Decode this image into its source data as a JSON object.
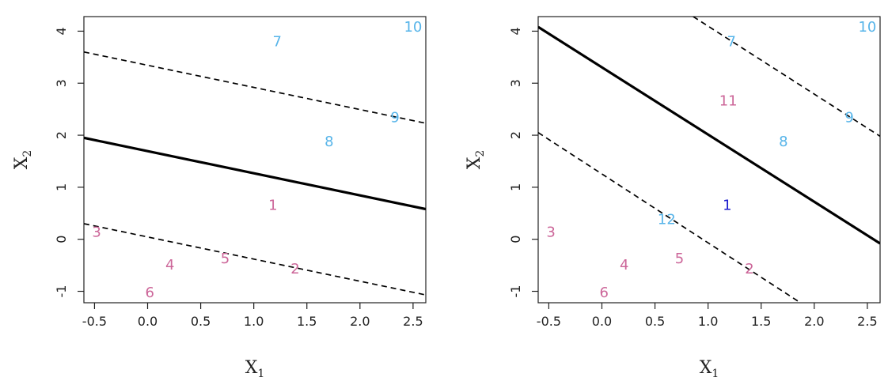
{
  "chart_data": [
    {
      "type": "scatter",
      "title": "",
      "xlabel": "X",
      "xlabel_sub": "1",
      "ylabel": "X",
      "ylabel_sub": "2",
      "xlim": [
        -0.6,
        2.62
      ],
      "ylim": [
        -1.22,
        4.28
      ],
      "x_ticks": [
        -0.5,
        0.0,
        0.5,
        1.0,
        1.5,
        2.0,
        2.5
      ],
      "x_tick_labels": [
        "-0.5",
        "0.0",
        "0.5",
        "1.0",
        "1.5",
        "2.0",
        "2.5"
      ],
      "y_ticks": [
        -1,
        0,
        1,
        2,
        3,
        4
      ],
      "y_tick_labels": [
        "-1",
        "0",
        "1",
        "2",
        "3",
        "4"
      ],
      "grid": false,
      "points": [
        {
          "label": "1",
          "x": 1.18,
          "y": 0.66,
          "color": "#cc6699"
        },
        {
          "label": "2",
          "x": 1.39,
          "y": -0.57,
          "color": "#cc6699"
        },
        {
          "label": "3",
          "x": -0.48,
          "y": 0.14,
          "color": "#cc6699"
        },
        {
          "label": "4",
          "x": 0.21,
          "y": -0.49,
          "color": "#cc6699"
        },
        {
          "label": "5",
          "x": 0.73,
          "y": -0.37,
          "color": "#cc6699"
        },
        {
          "label": "6",
          "x": 0.02,
          "y": -1.02,
          "color": "#cc6699"
        },
        {
          "label": "7",
          "x": 1.22,
          "y": 3.8,
          "color": "#56b4e9"
        },
        {
          "label": "8",
          "x": 1.71,
          "y": 1.88,
          "color": "#56b4e9"
        },
        {
          "label": "9",
          "x": 2.33,
          "y": 2.34,
          "color": "#56b4e9"
        },
        {
          "label": "10",
          "x": 2.5,
          "y": 4.08,
          "color": "#56b4e9"
        }
      ],
      "lines": [
        {
          "style": "solid",
          "x1": -0.6,
          "y1": 1.95,
          "x2": 2.62,
          "y2": 0.58
        },
        {
          "style": "dashed",
          "x1": -0.6,
          "y1": 3.6,
          "x2": 2.62,
          "y2": 2.23
        },
        {
          "style": "dashed",
          "x1": -0.6,
          "y1": 0.3,
          "x2": 2.62,
          "y2": -1.07
        }
      ]
    },
    {
      "type": "scatter",
      "title": "",
      "xlabel": "X",
      "xlabel_sub": "1",
      "ylabel": "X",
      "ylabel_sub": "2",
      "xlim": [
        -0.6,
        2.62
      ],
      "ylim": [
        -1.22,
        4.28
      ],
      "x_ticks": [
        -0.5,
        0.0,
        0.5,
        1.0,
        1.5,
        2.0,
        2.5
      ],
      "x_tick_labels": [
        "-0.5",
        "0.0",
        "0.5",
        "1.0",
        "1.5",
        "2.0",
        "2.5"
      ],
      "y_ticks": [
        -1,
        0,
        1,
        2,
        3,
        4
      ],
      "y_tick_labels": [
        "-1",
        "0",
        "1",
        "2",
        "3",
        "4"
      ],
      "grid": false,
      "points": [
        {
          "label": "1",
          "x": 1.18,
          "y": 0.66,
          "color": "#1a1acc"
        },
        {
          "label": "2",
          "x": 1.39,
          "y": -0.57,
          "color": "#cc6699"
        },
        {
          "label": "3",
          "x": -0.48,
          "y": 0.14,
          "color": "#cc6699"
        },
        {
          "label": "4",
          "x": 0.21,
          "y": -0.49,
          "color": "#cc6699"
        },
        {
          "label": "5",
          "x": 0.73,
          "y": -0.37,
          "color": "#cc6699"
        },
        {
          "label": "6",
          "x": 0.02,
          "y": -1.02,
          "color": "#cc6699"
        },
        {
          "label": "7",
          "x": 1.22,
          "y": 3.8,
          "color": "#56b4e9"
        },
        {
          "label": "8",
          "x": 1.71,
          "y": 1.88,
          "color": "#56b4e9"
        },
        {
          "label": "9",
          "x": 2.33,
          "y": 2.34,
          "color": "#56b4e9"
        },
        {
          "label": "10",
          "x": 2.5,
          "y": 4.08,
          "color": "#56b4e9"
        },
        {
          "label": "11",
          "x": 1.19,
          "y": 2.66,
          "color": "#cc6699"
        },
        {
          "label": "12",
          "x": 0.61,
          "y": 0.38,
          "color": "#56b4e9"
        }
      ],
      "lines": [
        {
          "style": "solid",
          "x1": -0.6,
          "y1": 4.08,
          "x2": 2.62,
          "y2": -0.08
        },
        {
          "style": "dashed",
          "x1": 0.86,
          "y1": 4.28,
          "x2": 2.62,
          "y2": 1.98
        },
        {
          "style": "dashed",
          "x1": -0.6,
          "y1": 2.05,
          "x2": 1.87,
          "y2": -1.22
        }
      ]
    }
  ]
}
